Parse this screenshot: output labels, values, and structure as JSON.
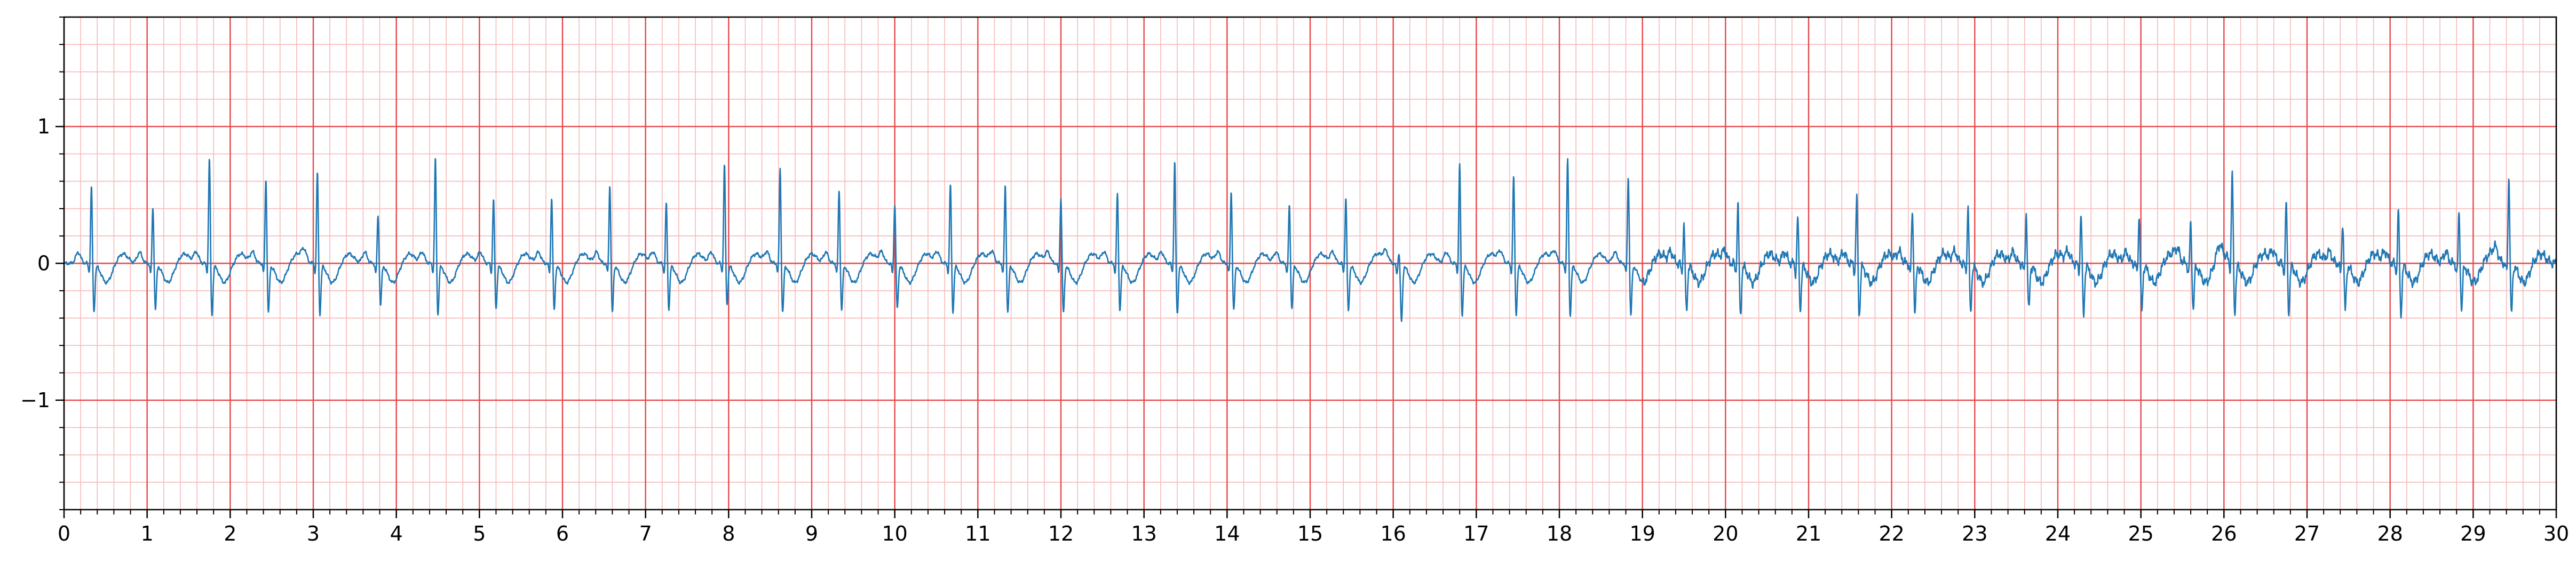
{
  "chart_data": {
    "type": "line",
    "title": "",
    "xlabel": "",
    "ylabel": "",
    "xlim": [
      0,
      30
    ],
    "ylim": [
      -1.8,
      1.8
    ],
    "x_major_ticks": [
      0,
      1,
      2,
      3,
      4,
      5,
      6,
      7,
      8,
      9,
      10,
      11,
      12,
      13,
      14,
      15,
      16,
      17,
      18,
      19,
      20,
      21,
      22,
      23,
      24,
      25,
      26,
      27,
      28,
      29,
      30
    ],
    "x_tick_labels": [
      "0",
      "1",
      "2",
      "3",
      "4",
      "5",
      "6",
      "7",
      "8",
      "9",
      "10",
      "11",
      "12",
      "13",
      "14",
      "15",
      "16",
      "17",
      "18",
      "19",
      "20",
      "21",
      "22",
      "23",
      "24",
      "25",
      "26",
      "27",
      "28",
      "29",
      "30"
    ],
    "y_major_ticks": [
      -1,
      0,
      1
    ],
    "y_tick_labels": [
      "−1",
      "0",
      "1"
    ],
    "x_minor_step": 0.2,
    "y_minor_step": 0.2,
    "grid": "on",
    "colors": {
      "line": "#1f77b4",
      "major_grid": "#e8474a",
      "minor_grid": "#f7b9b9",
      "axes": "#000000"
    },
    "series": [
      {
        "beats": [
          {
            "t": 0.33,
            "r": 0.58,
            "s": -0.35
          },
          {
            "t": 1.07,
            "r": 0.43,
            "s": -0.33
          },
          {
            "t": 1.75,
            "r": 0.79,
            "s": -0.38
          },
          {
            "t": 2.43,
            "r": 0.64,
            "s": -0.36
          },
          {
            "t": 3.05,
            "r": 0.69,
            "s": -0.37
          },
          {
            "t": 3.78,
            "r": 0.37,
            "s": -0.3
          },
          {
            "t": 4.47,
            "r": 0.79,
            "s": -0.38
          },
          {
            "t": 5.17,
            "r": 0.49,
            "s": -0.33
          },
          {
            "t": 5.87,
            "r": 0.5,
            "s": -0.34
          },
          {
            "t": 6.57,
            "r": 0.59,
            "s": -0.36
          },
          {
            "t": 7.25,
            "r": 0.46,
            "s": -0.33
          },
          {
            "t": 7.95,
            "r": 0.74,
            "s": -0.3
          },
          {
            "t": 8.62,
            "r": 0.71,
            "s": -0.36
          },
          {
            "t": 9.33,
            "r": 0.55,
            "s": -0.34
          },
          {
            "t": 10.0,
            "r": 0.45,
            "s": -0.33
          },
          {
            "t": 10.67,
            "r": 0.6,
            "s": -0.35
          },
          {
            "t": 11.33,
            "r": 0.59,
            "s": -0.36
          },
          {
            "t": 12.0,
            "r": 0.5,
            "s": -0.36
          },
          {
            "t": 12.68,
            "r": 0.53,
            "s": -0.34
          },
          {
            "t": 13.37,
            "r": 0.76,
            "s": -0.37
          },
          {
            "t": 14.05,
            "r": 0.54,
            "s": -0.34
          },
          {
            "t": 14.75,
            "r": 0.44,
            "s": -0.33
          },
          {
            "t": 15.43,
            "r": 0.5,
            "s": -0.35
          },
          {
            "t": 16.07,
            "r": 0.1,
            "s": -0.42
          },
          {
            "t": 16.8,
            "r": 0.75,
            "s": -0.38
          },
          {
            "t": 17.45,
            "r": 0.66,
            "s": -0.37
          },
          {
            "t": 18.1,
            "r": 0.78,
            "s": -0.38
          },
          {
            "t": 18.83,
            "r": 0.65,
            "s": -0.38
          },
          {
            "t": 19.5,
            "r": 0.3,
            "s": -0.35
          },
          {
            "t": 20.15,
            "r": 0.45,
            "s": -0.38
          },
          {
            "t": 20.87,
            "r": 0.35,
            "s": -0.33
          },
          {
            "t": 21.58,
            "r": 0.5,
            "s": -0.38
          },
          {
            "t": 22.25,
            "r": 0.4,
            "s": -0.36
          },
          {
            "t": 22.92,
            "r": 0.43,
            "s": -0.36
          },
          {
            "t": 23.62,
            "r": 0.38,
            "s": -0.34
          },
          {
            "t": 24.28,
            "r": 0.38,
            "s": -0.37
          },
          {
            "t": 24.98,
            "r": 0.36,
            "s": -0.35
          },
          {
            "t": 25.6,
            "r": 0.3,
            "s": -0.33
          },
          {
            "t": 26.1,
            "r": 0.67,
            "s": -0.36
          },
          {
            "t": 26.75,
            "r": 0.46,
            "s": -0.35
          },
          {
            "t": 27.43,
            "r": 0.32,
            "s": -0.34
          },
          {
            "t": 28.1,
            "r": 0.4,
            "s": -0.37
          },
          {
            "t": 28.83,
            "r": 0.38,
            "s": -0.33
          },
          {
            "t": 29.43,
            "r": 0.65,
            "s": -0.37
          }
        ],
        "sample_step": 0.004
      }
    ]
  }
}
